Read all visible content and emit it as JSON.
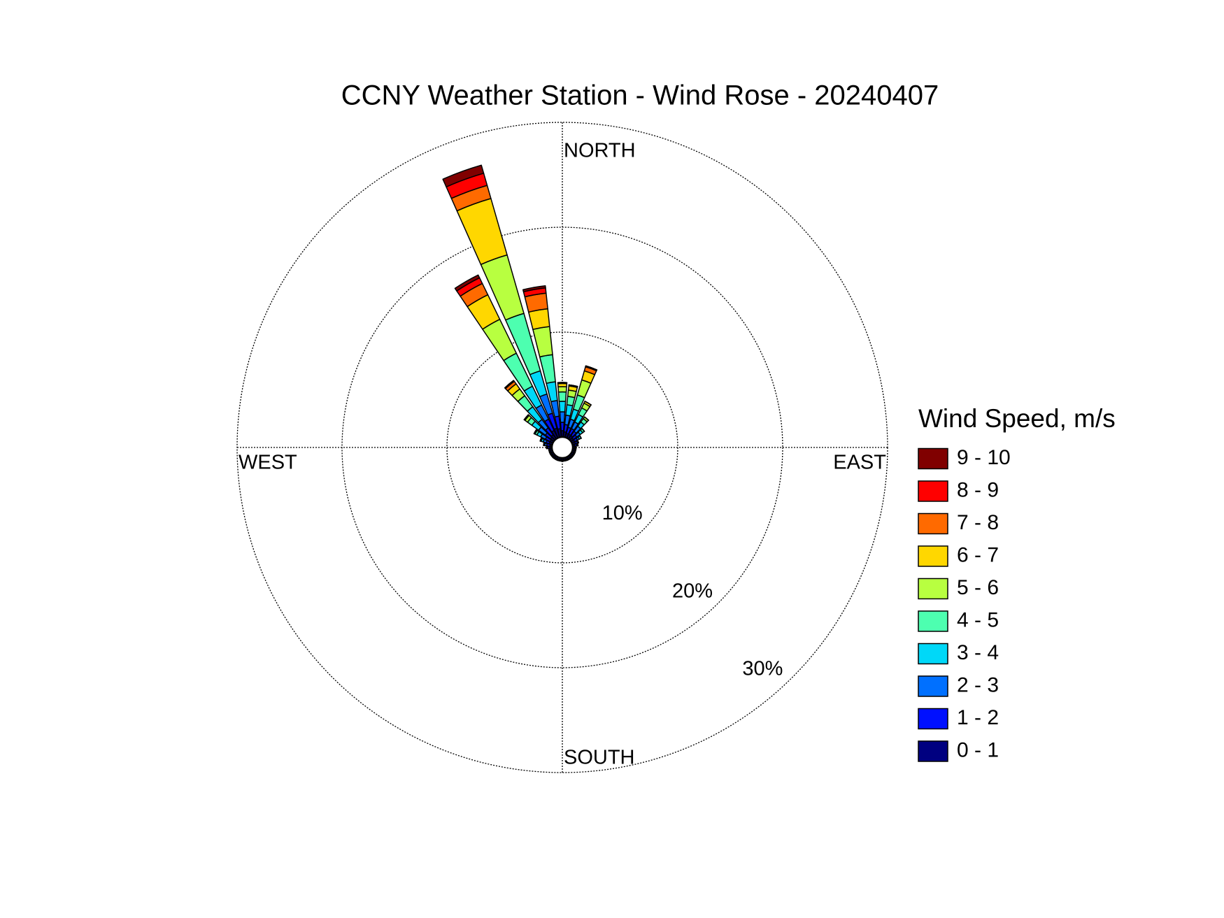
{
  "chart_data": {
    "type": "windrose",
    "title": "CCNY Weather Station - Wind Rose - 20240407",
    "direction_labels": {
      "north": "NORTH",
      "east": "EAST",
      "south": "SOUTH",
      "west": "WEST"
    },
    "legend_title": "Wind Speed, m/s",
    "x": [
      0,
      10,
      20,
      30,
      40,
      50,
      60,
      70,
      80,
      90,
      100,
      110,
      120,
      130,
      140,
      150,
      160,
      170,
      180,
      190,
      200,
      210,
      220,
      230,
      240,
      250,
      260,
      270,
      280,
      290,
      300,
      310,
      320,
      330,
      340,
      350
    ],
    "rlim": [
      0,
      30
    ],
    "rticks": [
      {
        "value": 10,
        "label": "10%"
      },
      {
        "value": 20,
        "label": "20%"
      },
      {
        "value": 30,
        "label": "30%"
      }
    ],
    "grid": true,
    "series": [
      {
        "name": "0 - 1",
        "color": "#000080",
        "values": [
          0.6,
          0.5,
          0.4,
          0.4,
          0.4,
          0.3,
          0.3,
          0.3,
          0.2,
          0.2,
          0.2,
          0.2,
          0.2,
          0.2,
          0.2,
          0.2,
          0.2,
          0.2,
          0.2,
          0.2,
          0.2,
          0.2,
          0.2,
          0.2,
          0.2,
          0.2,
          0.2,
          0.2,
          0.2,
          0.3,
          0.3,
          0.4,
          0.5,
          0.8,
          0.9,
          0.8
        ]
      },
      {
        "name": "1 - 2",
        "color": "#0010ff",
        "values": [
          0.8,
          0.7,
          0.6,
          0.6,
          0.5,
          0.4,
          0.3,
          0.2,
          0.2,
          0.1,
          0.1,
          0.1,
          0.1,
          0.1,
          0.1,
          0.1,
          0.1,
          0.1,
          0.1,
          0.1,
          0.1,
          0.1,
          0.1,
          0.1,
          0.1,
          0.1,
          0.1,
          0.2,
          0.3,
          0.3,
          0.5,
          0.6,
          0.8,
          1.2,
          1.5,
          1.2
        ]
      },
      {
        "name": "2 - 3",
        "color": "#0070ff",
        "values": [
          1.0,
          0.9,
          0.8,
          0.7,
          0.6,
          0.4,
          0.2,
          0.1,
          0.1,
          0,
          0,
          0,
          0,
          0,
          0,
          0,
          0,
          0,
          0,
          0,
          0,
          0,
          0,
          0,
          0,
          0,
          0,
          0.1,
          0.2,
          0.3,
          0.5,
          0.8,
          1.0,
          1.5,
          1.9,
          1.5
        ]
      },
      {
        "name": "3 - 4",
        "color": "#00d8f8",
        "values": [
          1.0,
          1.0,
          1.0,
          0.8,
          0.5,
          0.3,
          0.2,
          0,
          0,
          0,
          0,
          0,
          0,
          0,
          0,
          0,
          0,
          0,
          0,
          0,
          0,
          0,
          0,
          0,
          0,
          0,
          0,
          0,
          0.1,
          0.2,
          0.4,
          0.8,
          1.5,
          2.0,
          2.3,
          1.8
        ]
      },
      {
        "name": "4 - 5",
        "color": "#4dffb0",
        "values": [
          0.9,
          0.8,
          1.4,
          0.7,
          0.4,
          0.2,
          0,
          0,
          0,
          0,
          0,
          0,
          0,
          0,
          0,
          0,
          0,
          0,
          0,
          0,
          0,
          0,
          0,
          0,
          0,
          0,
          0,
          0,
          0,
          0.1,
          0.2,
          0.5,
          1.3,
          3.5,
          5.7,
          2.6
        ]
      },
      {
        "name": "5 - 6",
        "color": "#b8ff40",
        "values": [
          0.5,
          0.6,
          1.5,
          0.5,
          0.2,
          0,
          0,
          0,
          0,
          0,
          0,
          0,
          0,
          0,
          0,
          0,
          0,
          0,
          0,
          0,
          0,
          0,
          0,
          0,
          0,
          0,
          0,
          0,
          0,
          0,
          0.1,
          0.3,
          0.8,
          3.6,
          5.8,
          2.7
        ]
      },
      {
        "name": "6 - 7",
        "color": "#ffd700",
        "values": [
          0.3,
          0.4,
          0.9,
          0.2,
          0,
          0,
          0,
          0,
          0,
          0,
          0,
          0,
          0,
          0,
          0,
          0,
          0,
          0,
          0,
          0,
          0,
          0,
          0,
          0,
          0,
          0,
          0,
          0,
          0,
          0,
          0,
          0.1,
          0.6,
          2.6,
          5.6,
          1.7
        ]
      },
      {
        "name": "7 - 8",
        "color": "#ff6a00",
        "values": [
          0.1,
          0.1,
          0.4,
          0,
          0,
          0,
          0,
          0,
          0,
          0,
          0,
          0,
          0,
          0,
          0,
          0,
          0,
          0,
          0,
          0,
          0,
          0,
          0,
          0,
          0,
          0,
          0,
          0,
          0,
          0,
          0,
          0,
          0.3,
          1.2,
          1.3,
          1.5
        ]
      },
      {
        "name": "8 - 9",
        "color": "#ff0000",
        "values": [
          0,
          0,
          0.1,
          0,
          0,
          0,
          0,
          0,
          0,
          0,
          0,
          0,
          0,
          0,
          0,
          0,
          0,
          0,
          0,
          0,
          0,
          0,
          0,
          0,
          0,
          0,
          0,
          0,
          0,
          0,
          0,
          0,
          0.1,
          0.6,
          1.2,
          0.5
        ]
      },
      {
        "name": "9 - 10",
        "color": "#800000",
        "values": [
          0,
          0,
          0,
          0,
          0,
          0,
          0,
          0,
          0,
          0,
          0,
          0,
          0,
          0,
          0,
          0,
          0,
          0,
          0,
          0,
          0,
          0,
          0,
          0,
          0,
          0,
          0,
          0,
          0,
          0,
          0,
          0,
          0,
          0.3,
          0.8,
          0.2
        ]
      }
    ]
  }
}
